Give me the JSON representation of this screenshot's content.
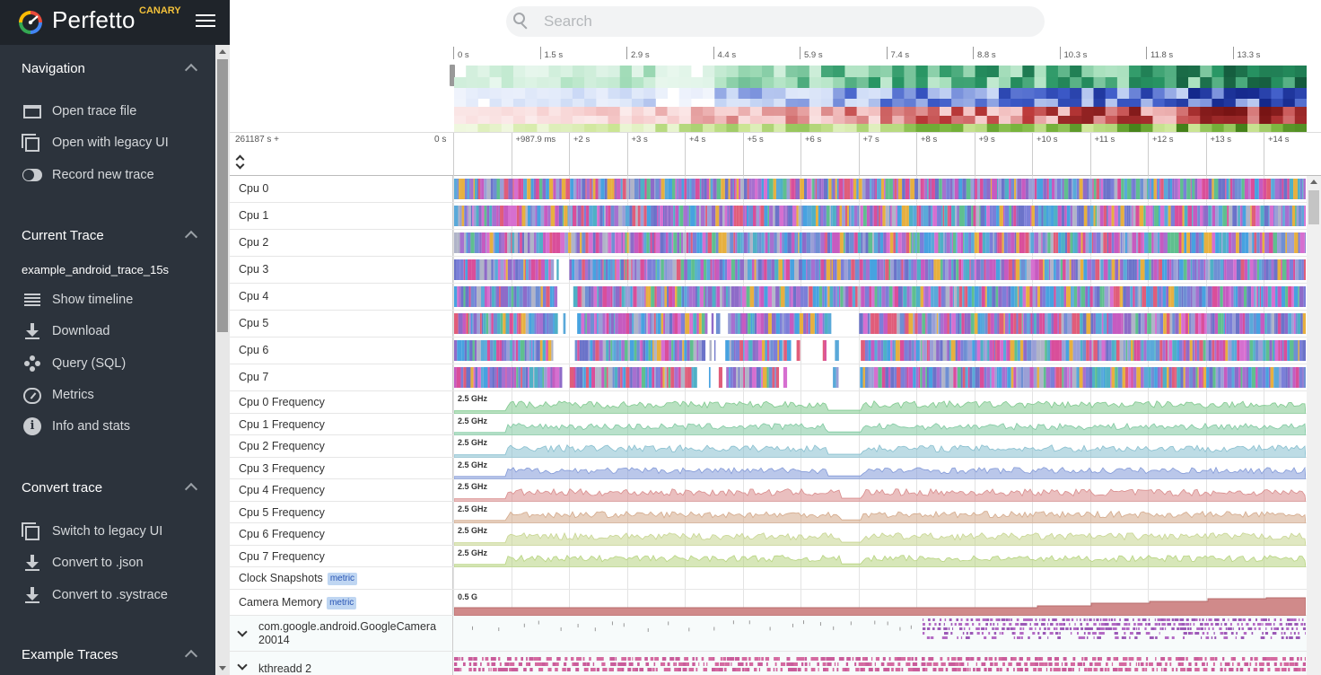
{
  "app": {
    "name": "Perfetto",
    "channel": "CANARY"
  },
  "search": {
    "placeholder": "Search"
  },
  "sidebar": {
    "sections": [
      {
        "title": "Navigation",
        "items": [
          {
            "label": "Open trace file",
            "icon": "folder-icon"
          },
          {
            "label": "Open with legacy UI",
            "icon": "window-icon"
          },
          {
            "label": "Record new trace",
            "icon": "record-toggle-icon"
          }
        ]
      },
      {
        "title": "Current Trace",
        "trace_name": "example_android_trace_15s",
        "items": [
          {
            "label": "Show timeline",
            "icon": "timeline-icon"
          },
          {
            "label": "Download",
            "icon": "download-icon"
          },
          {
            "label": "Query (SQL)",
            "icon": "query-icon"
          },
          {
            "label": "Metrics",
            "icon": "gauge-icon"
          },
          {
            "label": "Info and stats",
            "icon": "info-icon"
          }
        ]
      },
      {
        "title": "Convert trace",
        "items": [
          {
            "label": "Switch to legacy UI",
            "icon": "window-icon"
          },
          {
            "label": "Convert to .json",
            "icon": "download-icon"
          },
          {
            "label": "Convert to .systrace",
            "icon": "download-icon"
          }
        ]
      },
      {
        "title": "Example Traces",
        "items": []
      }
    ]
  },
  "overview": {
    "ticks": [
      "0 s",
      "1.5 s",
      "2.9 s",
      "4.4 s",
      "5.9 s",
      "7.4 s",
      "8.8 s",
      "10.3 s",
      "11.8 s",
      "13.3 s"
    ]
  },
  "timeaxis": {
    "offset_label": "261187 s +",
    "zero_label": "0 s",
    "ticks": [
      "+987.9 ms",
      "+2 s",
      "+3 s",
      "+4 s",
      "+5 s",
      "+6 s",
      "+7 s",
      "+8 s",
      "+9 s",
      "+10 s",
      "+11 s",
      "+12 s",
      "+13 s",
      "+14 s"
    ]
  },
  "tracks": {
    "cpu": [
      "Cpu 0",
      "Cpu 1",
      "Cpu 2",
      "Cpu 3",
      "Cpu 4",
      "Cpu 5",
      "Cpu 6",
      "Cpu 7"
    ],
    "freq": [
      "Cpu 0 Frequency",
      "Cpu 1 Frequency",
      "Cpu 2 Frequency",
      "Cpu 3 Frequency",
      "Cpu 4 Frequency",
      "Cpu 5 Frequency",
      "Cpu 6 Frequency",
      "Cpu 7 Frequency"
    ],
    "freq_scale": "2.5 GHz",
    "freq_colors": [
      "#7fc98e",
      "#7fc9a0",
      "#87bfcf",
      "#8299d8",
      "#d98b8b",
      "#d4a98a",
      "#c7d590",
      "#b7d47f"
    ],
    "clock": {
      "title": "Clock Snapshots",
      "tag": "metric"
    },
    "camera_mem": {
      "title": "Camera Memory",
      "tag": "metric",
      "scale": "0.5 G",
      "color": "#d08a8a"
    },
    "groups": [
      {
        "title": "com.google.android.GoogleCamera 20014"
      },
      {
        "title": "kthreadd 2"
      }
    ]
  }
}
